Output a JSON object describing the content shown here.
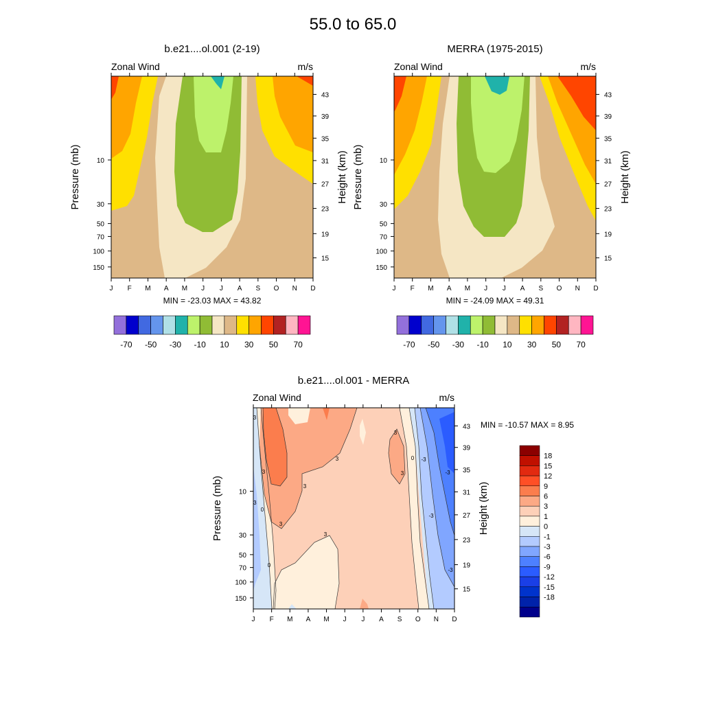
{
  "page_title": "55.0 to  65.0",
  "colors": {
    "main_palette": [
      "#9370db",
      "#0000cd",
      "#4169e1",
      "#6495ed",
      "#b0e0e6",
      "#20b2aa",
      "#bdf26b",
      "#90bc35",
      "#f5e6c4",
      "#deb887",
      "#ffe000",
      "#ffa500",
      "#ff4500",
      "#b22222",
      "#ffb6c1",
      "#ff1493"
    ],
    "diff_palette": [
      "#00008b",
      "#0022aa",
      "#0033cc",
      "#1a3fe6",
      "#2b5cff",
      "#4d80ff",
      "#80a6ff",
      "#b3cbff",
      "#d6e6f7",
      "#fff0dc",
      "#fdd0b8",
      "#fca985",
      "#fb7d4d",
      "#ff4f26",
      "#e22a10",
      "#c01000",
      "#8b0000"
    ]
  },
  "labels": {
    "height_unit": "Height (km)",
    "pressure_unit": "Pressure (mb)"
  },
  "chart_data": [
    {
      "type": "heatmap",
      "id": "model",
      "title": "b.e21....ol.001 (2-19)",
      "left_label": "Zonal Wind",
      "right_label": "m/s",
      "xlabel": "",
      "ylabel": "Pressure (mb)",
      "ylabel_right": "Height (km)",
      "x_ticks": [
        "J",
        "F",
        "M",
        "A",
        "M",
        "J",
        "J",
        "A",
        "S",
        "O",
        "N",
        "D"
      ],
      "pressure_ticks": [
        "10",
        "30",
        "50",
        "70",
        "100",
        "150"
      ],
      "height_ticks": [
        "43",
        "39",
        "35",
        "31",
        "27",
        "23",
        "19",
        "15"
      ],
      "summary": "MIN = -23.03  MAX =  43.82",
      "min": -23.03,
      "max": 43.82,
      "colorbar_labels": [
        "-70",
        "-50",
        "-30",
        "-10",
        "10",
        "30",
        "50",
        "70"
      ]
    },
    {
      "type": "heatmap",
      "id": "obs",
      "title": "MERRA (1975-2015)",
      "left_label": "Zonal Wind",
      "right_label": "m/s",
      "xlabel": "",
      "ylabel": "Pressure (mb)",
      "ylabel_right": "Height (km)",
      "x_ticks": [
        "J",
        "F",
        "M",
        "A",
        "M",
        "J",
        "J",
        "A",
        "S",
        "O",
        "N",
        "D"
      ],
      "pressure_ticks": [
        "10",
        "30",
        "50",
        "70",
        "100",
        "150"
      ],
      "height_ticks": [
        "43",
        "39",
        "35",
        "31",
        "27",
        "23",
        "19",
        "15"
      ],
      "summary": "MIN = -24.09  MAX =  49.31",
      "min": -24.09,
      "max": 49.31,
      "colorbar_labels": [
        "-70",
        "-50",
        "-30",
        "-10",
        "10",
        "30",
        "50",
        "70"
      ]
    },
    {
      "type": "heatmap",
      "id": "diff",
      "title": "b.e21....ol.001 - MERRA",
      "left_label": "Zonal Wind",
      "right_label": "m/s",
      "xlabel": "",
      "ylabel": "Pressure (mb)",
      "ylabel_right": "Height (km)",
      "x_ticks": [
        "J",
        "F",
        "M",
        "A",
        "M",
        "J",
        "J",
        "A",
        "S",
        "O",
        "N",
        "D"
      ],
      "pressure_ticks": [
        "10",
        "30",
        "50",
        "70",
        "100",
        "150"
      ],
      "height_ticks": [
        "43",
        "39",
        "35",
        "31",
        "27",
        "23",
        "19",
        "15"
      ],
      "summary": "MIN = -10.57  MAX =   8.95",
      "min": -10.57,
      "max": 8.95,
      "contour_labels": [
        "3",
        "3",
        "3",
        "3",
        "3",
        "3",
        "3",
        "3",
        "0",
        "0",
        "0",
        "-3",
        "-3",
        "-3",
        "-3",
        "-3"
      ],
      "colorbar_labels": [
        "18",
        "15",
        "12",
        "9",
        "6",
        "3",
        "1",
        "0",
        "-1",
        "-3",
        "-6",
        "-9",
        "-12",
        "-15",
        "-18"
      ]
    }
  ]
}
